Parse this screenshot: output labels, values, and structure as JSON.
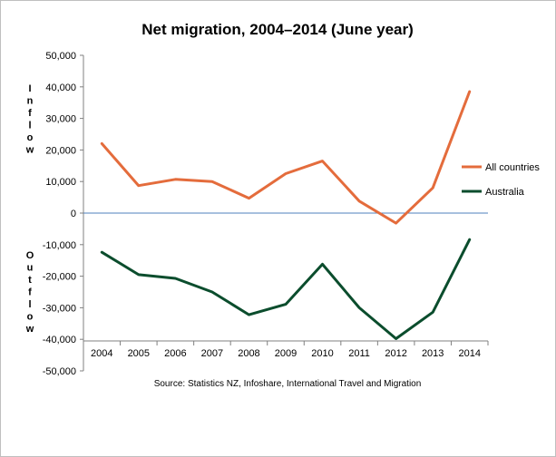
{
  "chart_data": {
    "type": "line",
    "title": "Net migration, 2004–2014 (June year)",
    "source": "Source: Statistics NZ, Infoshare, International Travel and Migration",
    "inflow_label": "Inflow",
    "outflow_label": "Outflow",
    "x": [
      "2004",
      "2005",
      "2006",
      "2007",
      "2008",
      "2009",
      "2010",
      "2011",
      "2012",
      "2013",
      "2014"
    ],
    "ylim": [
      -50000,
      50000
    ],
    "yticks": [
      -50000,
      -40000,
      -30000,
      -20000,
      -10000,
      0,
      10000,
      20000,
      30000,
      40000,
      50000
    ],
    "ytick_labels": [
      "-50,000",
      "-40,000",
      "-30,000",
      "-20,000",
      "-10,000",
      "0",
      "10,000",
      "20,000",
      "30,000",
      "40,000",
      "50,000"
    ],
    "grid": false,
    "legend_position": "right",
    "series": [
      {
        "name": "All countries",
        "color": "#e46c3c",
        "values": [
          22000,
          8700,
          10700,
          10000,
          4700,
          12500,
          16500,
          3800,
          -3200,
          8000,
          38500
        ]
      },
      {
        "name": "Australia",
        "color": "#0b4d2d",
        "values": [
          -12400,
          -19500,
          -20700,
          -25000,
          -32200,
          -28900,
          -16200,
          -30000,
          -39800,
          -31400,
          -8400
        ]
      }
    ],
    "zero_line_color": "#4f81bd"
  }
}
